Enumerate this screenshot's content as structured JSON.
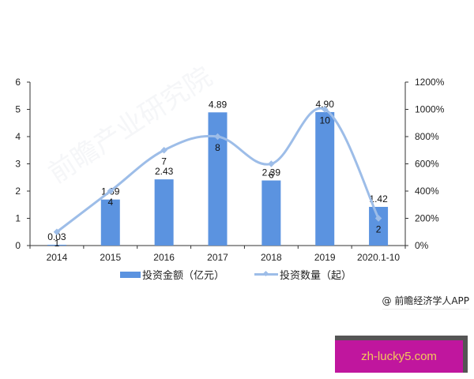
{
  "chart_data": {
    "type": "bar",
    "title": "",
    "xlabel": "",
    "ylabel": "",
    "categories": [
      "2014",
      "2015",
      "2016",
      "2017",
      "2018",
      "2019",
      "2020.1-10"
    ],
    "series": [
      {
        "name": "投资金额（亿元）",
        "type": "bar",
        "axis": "left",
        "color": "#5b93e0",
        "values": [
          0.03,
          1.69,
          2.43,
          4.89,
          2.39,
          4.9,
          1.42
        ],
        "labels": [
          "0.03",
          "1.69",
          "2.43",
          "4.89",
          "2.39",
          "4.90",
          "1.42"
        ]
      },
      {
        "name": "投资数量（起）",
        "type": "line",
        "axis": "right",
        "color": "#9dbde8",
        "smooth": true,
        "values": [
          1,
          4,
          7,
          8,
          6,
          10,
          2
        ],
        "labels": [
          "1",
          "4",
          "7",
          "8",
          "6",
          "10",
          "2"
        ]
      }
    ],
    "ylim": [
      0,
      6
    ],
    "y_ticks": [
      "0",
      "1",
      "2",
      "3",
      "4",
      "5",
      "6"
    ],
    "y2lim": [
      0,
      1200
    ],
    "y2_ticks": [
      "0%",
      "200%",
      "400%",
      "600%",
      "800%",
      "1000%",
      "1200%"
    ],
    "grid": false,
    "legend_position": "bottom"
  },
  "legend": {
    "bar_label": "投资金额（亿元）",
    "line_label": "投资数量（起）"
  },
  "source": "@ 前瞻经济学人APP",
  "watermark": "前瞻产业研究院",
  "ad": {
    "text": "zh-lucky5.com",
    "bg_color": "#c0169e",
    "text_color": "#f3c95a"
  }
}
